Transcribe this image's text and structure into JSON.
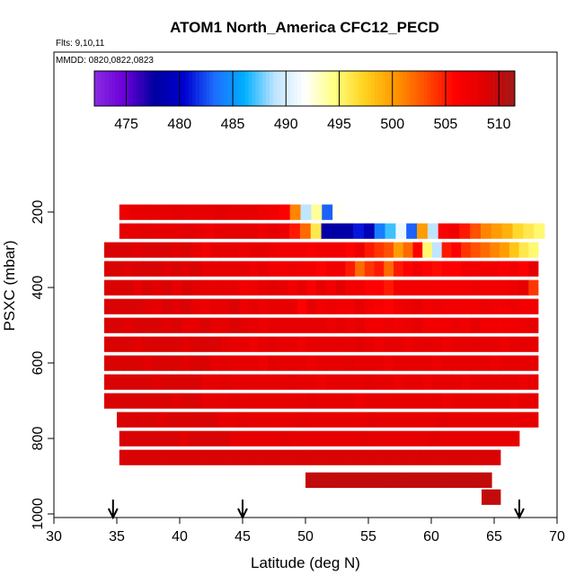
{
  "chart_data": {
    "type": "heatmap",
    "title": "ATOM1 North_America CFC12_PECD",
    "annotations": [
      "Flts: 9,10,11",
      "MMDD: 0820,0822,0823"
    ],
    "xlabel": "Latitude (deg N)",
    "ylabel": "PSXC (mbar)",
    "xlim": [
      30,
      70
    ],
    "ylim": [
      1000,
      100
    ],
    "xticks": [
      "30",
      "35",
      "40",
      "45",
      "50",
      "55",
      "60",
      "65",
      "70"
    ],
    "yticks": [
      "200",
      "400",
      "600",
      "800",
      "1000"
    ],
    "colorbar": {
      "min": 472,
      "max": 511.5,
      "ticks": [
        "475",
        "480",
        "485",
        "490",
        "495",
        "500",
        "505",
        "510"
      ],
      "colors": [
        "#8a2be2",
        "#6a00d8",
        "#0000a0",
        "#0000d0",
        "#1e6cff",
        "#00b0ff",
        "#bde4ff",
        "#ffffff",
        "#ffff80",
        "#ffd21e",
        "#ff9800",
        "#ff5000",
        "#ff0000",
        "#e00000",
        "#a01818"
      ]
    },
    "flight_markers_latitude": [
      34.7,
      45,
      67
    ],
    "rows": [
      {
        "p": 200,
        "lat0": 35.2,
        "lat1": 53.0,
        "v": [
          507.5,
          508,
          508,
          508,
          508,
          508.5,
          508,
          508,
          508,
          508.5,
          508,
          508,
          508,
          507.5,
          507,
          506,
          501,
          489,
          494,
          483,
          492
        ]
      },
      {
        "p": 250,
        "lat0": 35.2,
        "lat1": 69.0,
        "v": [
          508,
          508,
          508.5,
          508,
          508,
          508,
          508.5,
          508,
          507.5,
          508,
          508,
          508,
          508,
          507.5,
          508,
          507.5,
          505,
          502,
          496,
          478,
          478,
          478,
          481,
          479,
          484,
          487,
          491,
          483,
          500,
          489,
          506,
          507,
          505,
          503,
          501,
          500,
          499,
          497,
          496,
          495
        ]
      },
      {
        "p": 300,
        "lat0": 34.0,
        "lat1": 68.5,
        "v": [
          509,
          509,
          509,
          508.5,
          509,
          509,
          509,
          508.5,
          509,
          508,
          507,
          508,
          508,
          508,
          507.5,
          508,
          508,
          507.5,
          507,
          507,
          507,
          506.5,
          507,
          507,
          507,
          506,
          507.5,
          505,
          504,
          503,
          500,
          502,
          506,
          495,
          489,
          505,
          506,
          504,
          503,
          502,
          501,
          500,
          498,
          496,
          495
        ]
      },
      {
        "p": 350,
        "lat0": 34.0,
        "lat1": 68.5,
        "v": [
          509,
          509,
          508.5,
          509,
          509,
          509,
          508.5,
          509,
          508.5,
          509,
          508,
          508,
          508,
          508,
          508,
          507.5,
          508,
          507,
          507,
          507.5,
          507,
          507,
          506,
          507,
          507,
          505,
          502,
          504,
          505,
          502,
          505,
          506,
          507,
          506,
          505.5,
          506,
          506,
          507,
          507,
          507,
          507,
          506.5,
          507,
          506,
          508
        ]
      },
      {
        "p": 400,
        "lat0": 34.0,
        "lat1": 68.5,
        "v": [
          509,
          509,
          509,
          508,
          509,
          508.5,
          509,
          508,
          509,
          508.5,
          508,
          508,
          508,
          508,
          507,
          507.5,
          508,
          508.5,
          508,
          507,
          508,
          506.5,
          508,
          507,
          508.5,
          507,
          507,
          506,
          506,
          505,
          507,
          507,
          507,
          507,
          507,
          507,
          507,
          507,
          507.5,
          507,
          507,
          507,
          507.5,
          508,
          504
        ]
      },
      {
        "p": 450,
        "lat0": 34.0,
        "lat1": 68.5,
        "v": [
          509,
          509,
          509,
          509,
          508.5,
          508,
          509,
          508.5,
          509,
          508,
          507.5,
          508,
          508,
          509,
          507.5,
          508,
          507.5,
          508,
          508,
          508,
          506,
          508,
          507,
          507.5,
          507,
          507,
          508,
          507,
          506.5,
          506,
          507,
          507.5,
          508,
          507,
          507.5,
          507,
          507,
          507,
          507,
          507.5,
          507,
          507,
          507.5,
          507,
          507
        ]
      },
      {
        "p": 500,
        "lat0": 34.0,
        "lat1": 68.5,
        "v": [
          509,
          509,
          508.5,
          509,
          509,
          509,
          508.5,
          509,
          508,
          508,
          509,
          508,
          508,
          509,
          508.5,
          508,
          507.5,
          508,
          508,
          508,
          508,
          508,
          508,
          507.5,
          508,
          507.5,
          508,
          507,
          507,
          507.5,
          507,
          507.5,
          508,
          507,
          507,
          507,
          507.5,
          507,
          508,
          507,
          507,
          507,
          507,
          507.5,
          508
        ]
      },
      {
        "p": 550,
        "lat0": 34.0,
        "lat1": 68.5,
        "v": [
          509,
          509,
          509,
          508.5,
          509,
          509,
          509,
          509,
          508.5,
          509,
          509,
          509,
          508.5,
          508,
          508,
          507.5,
          508,
          508.5,
          508,
          508,
          507.5,
          508,
          508,
          508,
          508,
          508,
          508.5,
          508,
          507.5,
          508,
          508,
          507.5,
          508,
          508,
          508,
          507.5,
          508,
          508,
          508,
          508,
          508,
          507.5,
          508,
          508,
          508
        ]
      },
      {
        "p": 600,
        "lat0": 34.0,
        "lat1": 68.5,
        "v": [
          509,
          509,
          509,
          509,
          508.5,
          509,
          509,
          509,
          508.5,
          509,
          509,
          508,
          508.5,
          508,
          508,
          508,
          507.5,
          508.5,
          508,
          508,
          508,
          507.5,
          508,
          508,
          508,
          508.5,
          508,
          508,
          508,
          507.5,
          508,
          508,
          508,
          508,
          507.5,
          508,
          508,
          508,
          508,
          508,
          507.5,
          508,
          508,
          508,
          508
        ]
      },
      {
        "p": 650,
        "lat0": 34.0,
        "lat1": 68.5,
        "v": [
          509,
          509,
          509,
          509,
          509,
          508.5,
          509,
          509,
          509,
          509,
          508,
          508,
          508.5,
          508,
          508,
          508,
          508,
          508,
          508,
          508.5,
          508,
          508,
          507.5,
          508,
          508,
          508,
          508,
          508.5,
          508,
          508,
          507.5,
          508,
          508,
          507.5,
          508,
          508,
          508,
          507.5,
          508,
          508,
          508,
          508,
          508,
          507.5,
          508
        ]
      },
      {
        "p": 700,
        "lat0": 34.0,
        "lat1": 68.5,
        "v": [
          509,
          509,
          509,
          509,
          509,
          509,
          509,
          508.5,
          509,
          509,
          508,
          508,
          508,
          508.5,
          508,
          508,
          508,
          508,
          508,
          508,
          508,
          508.5,
          508,
          508,
          508,
          508,
          507.5,
          508,
          508,
          508,
          508,
          508,
          508,
          508,
          508,
          507.5,
          508,
          508,
          508,
          508,
          508,
          508,
          507.5,
          508,
          508
        ]
      },
      {
        "p": 750,
        "lat0": 35.0,
        "lat1": 68.5,
        "v": [
          509,
          509,
          509,
          509,
          508.5,
          509,
          509,
          509,
          509,
          509,
          508,
          508,
          508.5,
          508,
          508,
          508,
          508,
          508,
          508.5,
          508,
          508,
          508,
          508,
          508,
          508,
          508.5,
          508,
          508,
          508,
          508,
          508,
          508,
          508.5,
          508,
          508,
          508,
          508,
          508,
          508,
          508,
          508,
          508
        ]
      },
      {
        "p": 800,
        "lat0": 35.2,
        "lat1": 67.0,
        "v": [
          509,
          509,
          509,
          509,
          509,
          509,
          508.5,
          509,
          509,
          509,
          509,
          508,
          508,
          508,
          508,
          508,
          508.5,
          508,
          508,
          508,
          508,
          508,
          508,
          508,
          508.5,
          508,
          508,
          508,
          508,
          508,
          508,
          508.5,
          508,
          508,
          508,
          508,
          508,
          508,
          508,
          508
        ]
      },
      {
        "p": 850,
        "lat0": 35.2,
        "lat1": 65.5,
        "v": [
          509,
          509,
          509,
          509,
          509,
          509,
          509,
          509,
          509,
          509,
          509,
          509,
          509,
          509,
          509,
          509,
          509,
          509,
          509,
          509,
          509,
          509,
          509,
          509,
          509,
          509,
          509,
          509,
          509,
          509,
          509,
          509,
          509,
          509,
          509,
          509,
          509,
          509
        ]
      },
      {
        "p": 910,
        "lat0": 50.0,
        "lat1": 64.8,
        "v": [
          510,
          510,
          510,
          510,
          510,
          510,
          510,
          510,
          510,
          510,
          510,
          510,
          510,
          510,
          510,
          510,
          510,
          510
        ]
      },
      {
        "p": 955,
        "lat0": 64.0,
        "lat1": 65.5,
        "v": [
          510,
          510
        ]
      }
    ]
  }
}
